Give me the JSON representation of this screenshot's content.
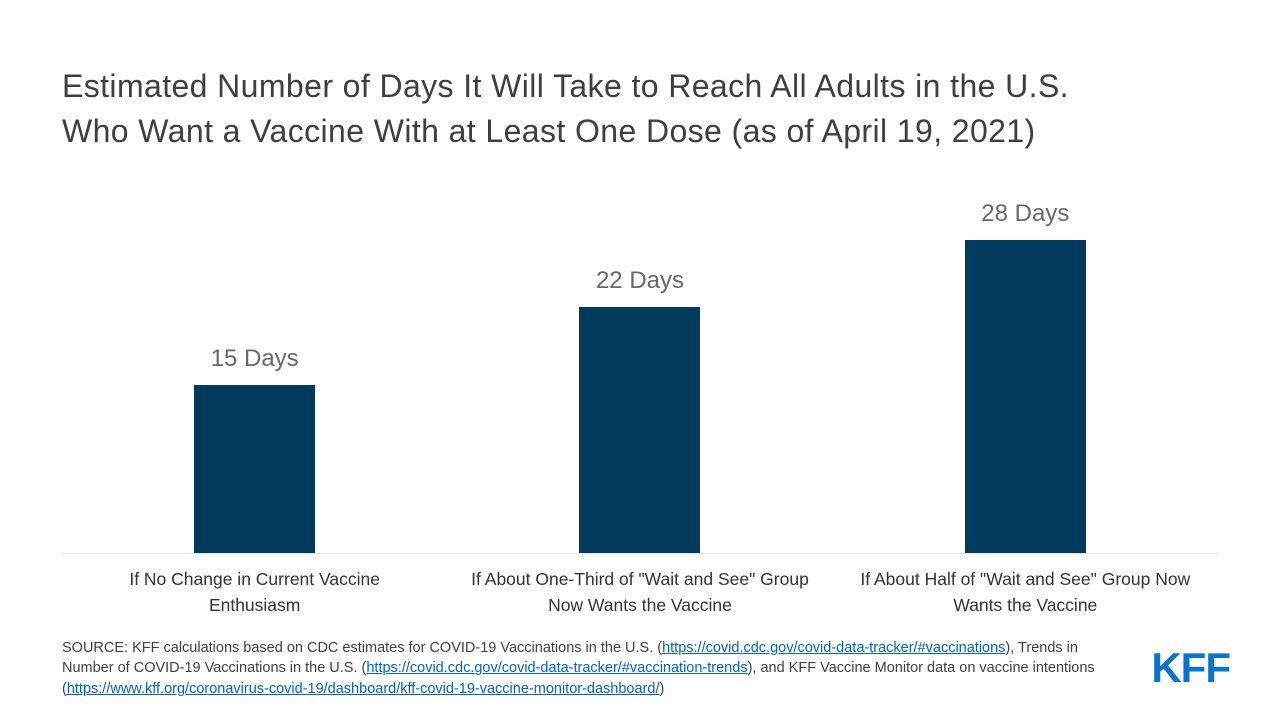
{
  "title": {
    "line1": "Estimated Number of Days It Will Take to Reach All Adults in the U.S.",
    "line2": "Who Want a Vaccine With at Least One Dose (as of April 19, 2021)"
  },
  "chart_data": {
    "type": "bar",
    "title": "Estimated Number of Days It Will Take to Reach All Adults in the U.S. Who Want a Vaccine With at Least One Dose (as of April 19, 2021)",
    "categories": [
      "If No Change in Current Vaccine Enthusiasm",
      "If About One-Third of \"Wait and See\" Group Now Wants the Vaccine",
      "If About Half of \"Wait and See\" Group Now Wants the Vaccine"
    ],
    "values": [
      15,
      22,
      28
    ],
    "data_labels": [
      "15 Days",
      "22 Days",
      "28 Days"
    ],
    "xlabel": "",
    "ylabel": "Days",
    "ylim": [
      0,
      28
    ],
    "grid": false,
    "legend": "none"
  },
  "colors": {
    "bar": "#003a5c",
    "link": "#0563c1",
    "logo": "#0b72ce",
    "title_text": "#3f3f3f",
    "value_label": "#696969",
    "axis_line": "#e2e2e2"
  },
  "source": {
    "segments": [
      {
        "type": "text",
        "text": "SOURCE: KFF calculations based on CDC estimates for COVID-19 Vaccinations in the U.S. ("
      },
      {
        "type": "link",
        "text": "https://covid.cdc.gov/covid-data-tracker/#vaccinations"
      },
      {
        "type": "text",
        "text": "), Trends in Number of COVID-19 Vaccinations in the U.S. ("
      },
      {
        "type": "link",
        "text": "https://covid.cdc.gov/covid-data-tracker/#vaccination-trends"
      },
      {
        "type": "text",
        "text": "),  and KFF Vaccine Monitor data on vaccine intentions ("
      },
      {
        "type": "link",
        "text": "https://www.kff.org/coronavirus-covid-19/dashboard/kff-covid-19-vaccine-monitor-dashboard/"
      },
      {
        "type": "text",
        "text": ")"
      }
    ]
  },
  "logo": {
    "text": "KFF"
  }
}
